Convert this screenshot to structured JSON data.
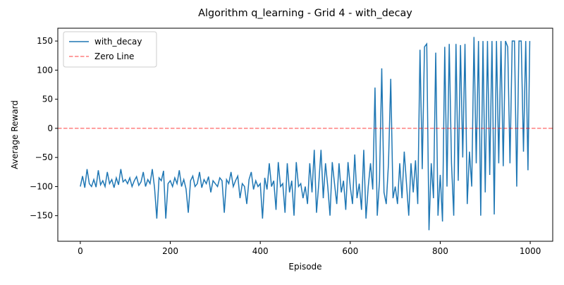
{
  "chart_data": {
    "type": "line",
    "title": "Algorithm q_learning - Grid 4 - with_decay",
    "x_label": "Episode",
    "y_label": "Average Reward",
    "xlim": [
      -50,
      1050
    ],
    "ylim": [
      -194,
      172
    ],
    "xticks": [
      0,
      200,
      400,
      600,
      800,
      1000
    ],
    "yticks": [
      {
        "value": -150,
        "label": "−150"
      },
      {
        "value": -100,
        "label": "−100"
      },
      {
        "value": -50,
        "label": "−50"
      },
      0,
      50,
      100,
      150
    ],
    "legend": "upper left",
    "x": [
      0,
      5,
      10,
      15,
      20,
      25,
      30,
      35,
      40,
      45,
      50,
      55,
      60,
      65,
      70,
      75,
      80,
      85,
      90,
      95,
      100,
      105,
      110,
      115,
      120,
      125,
      130,
      135,
      140,
      145,
      150,
      155,
      160,
      165,
      170,
      175,
      180,
      185,
      190,
      195,
      200,
      205,
      210,
      215,
      220,
      225,
      230,
      235,
      240,
      245,
      250,
      255,
      260,
      265,
      270,
      275,
      280,
      285,
      290,
      295,
      300,
      305,
      310,
      315,
      320,
      325,
      330,
      335,
      340,
      345,
      350,
      355,
      360,
      365,
      370,
      375,
      380,
      385,
      390,
      395,
      400,
      405,
      410,
      415,
      420,
      425,
      430,
      435,
      440,
      445,
      450,
      455,
      460,
      465,
      470,
      475,
      480,
      485,
      490,
      495,
      500,
      505,
      510,
      515,
      520,
      525,
      530,
      535,
      540,
      545,
      550,
      555,
      560,
      565,
      570,
      575,
      580,
      585,
      590,
      595,
      600,
      605,
      610,
      615,
      620,
      625,
      630,
      635,
      640,
      645,
      650,
      655,
      660,
      665,
      670,
      675,
      680,
      685,
      690,
      695,
      700,
      705,
      710,
      715,
      720,
      725,
      730,
      735,
      740,
      745,
      750,
      755,
      760,
      765,
      770,
      775,
      780,
      785,
      790,
      795,
      800,
      805,
      810,
      815,
      820,
      825,
      830,
      835,
      840,
      845,
      850,
      855,
      860,
      865,
      870,
      875,
      880,
      885,
      890,
      895,
      900,
      905,
      910,
      915,
      920,
      925,
      930,
      935,
      940,
      945,
      950,
      955,
      960,
      965,
      970,
      975,
      980,
      985,
      990,
      995,
      999
    ],
    "series": [
      {
        "name": "with_decay",
        "color": "#1f77b4",
        "values": [
          -100,
          -82,
          -102,
          -70,
          -95,
          -100,
          -88,
          -101,
          -72,
          -97,
          -90,
          -100,
          -75,
          -95,
          -88,
          -102,
          -85,
          -97,
          -70,
          -92,
          -88,
          -95,
          -85,
          -100,
          -90,
          -83,
          -98,
          -92,
          -75,
          -100,
          -88,
          -95,
          -70,
          -102,
          -155,
          -85,
          -90,
          -73,
          -155,
          -95,
          -90,
          -100,
          -85,
          -95,
          -72,
          -100,
          -88,
          -104,
          -145,
          -90,
          -82,
          -100,
          -95,
          -75,
          -102,
          -88,
          -95,
          -83,
          -110,
          -90,
          -95,
          -100,
          -85,
          -90,
          -145,
          -88,
          -95,
          -75,
          -100,
          -90,
          -82,
          -120,
          -95,
          -100,
          -130,
          -88,
          -75,
          -105,
          -90,
          -100,
          -95,
          -155,
          -85,
          -105,
          -60,
          -100,
          -90,
          -140,
          -58,
          -100,
          -95,
          -145,
          -60,
          -110,
          -90,
          -150,
          -58,
          -100,
          -95,
          -120,
          -100,
          -130,
          -60,
          -110,
          -37,
          -145,
          -95,
          -37,
          -120,
          -60,
          -100,
          -150,
          -58,
          -95,
          -130,
          -60,
          -110,
          -90,
          -140,
          -58,
          -100,
          -130,
          -45,
          -120,
          -95,
          -140,
          -37,
          -155,
          -100,
          -60,
          -105,
          70,
          -150,
          -90,
          103,
          -110,
          -130,
          -60,
          85,
          -120,
          -100,
          -130,
          -60,
          -120,
          -40,
          -95,
          -150,
          -60,
          -110,
          -55,
          -130,
          135,
          -70,
          140,
          145,
          -175,
          -60,
          -120,
          130,
          -150,
          -80,
          -160,
          140,
          -100,
          145,
          -60,
          -150,
          145,
          -90,
          143,
          -50,
          145,
          -130,
          -40,
          -100,
          157,
          -60,
          150,
          -150,
          150,
          -110,
          150,
          -80,
          150,
          -148,
          150,
          -60,
          150,
          -65,
          150,
          140,
          -60,
          150,
          150,
          -100,
          150,
          150,
          -40,
          150,
          -72,
          150
        ]
      }
    ],
    "hlines": [
      {
        "name": "Zero Line",
        "value": 0,
        "color": "#ff0000"
      }
    ]
  }
}
